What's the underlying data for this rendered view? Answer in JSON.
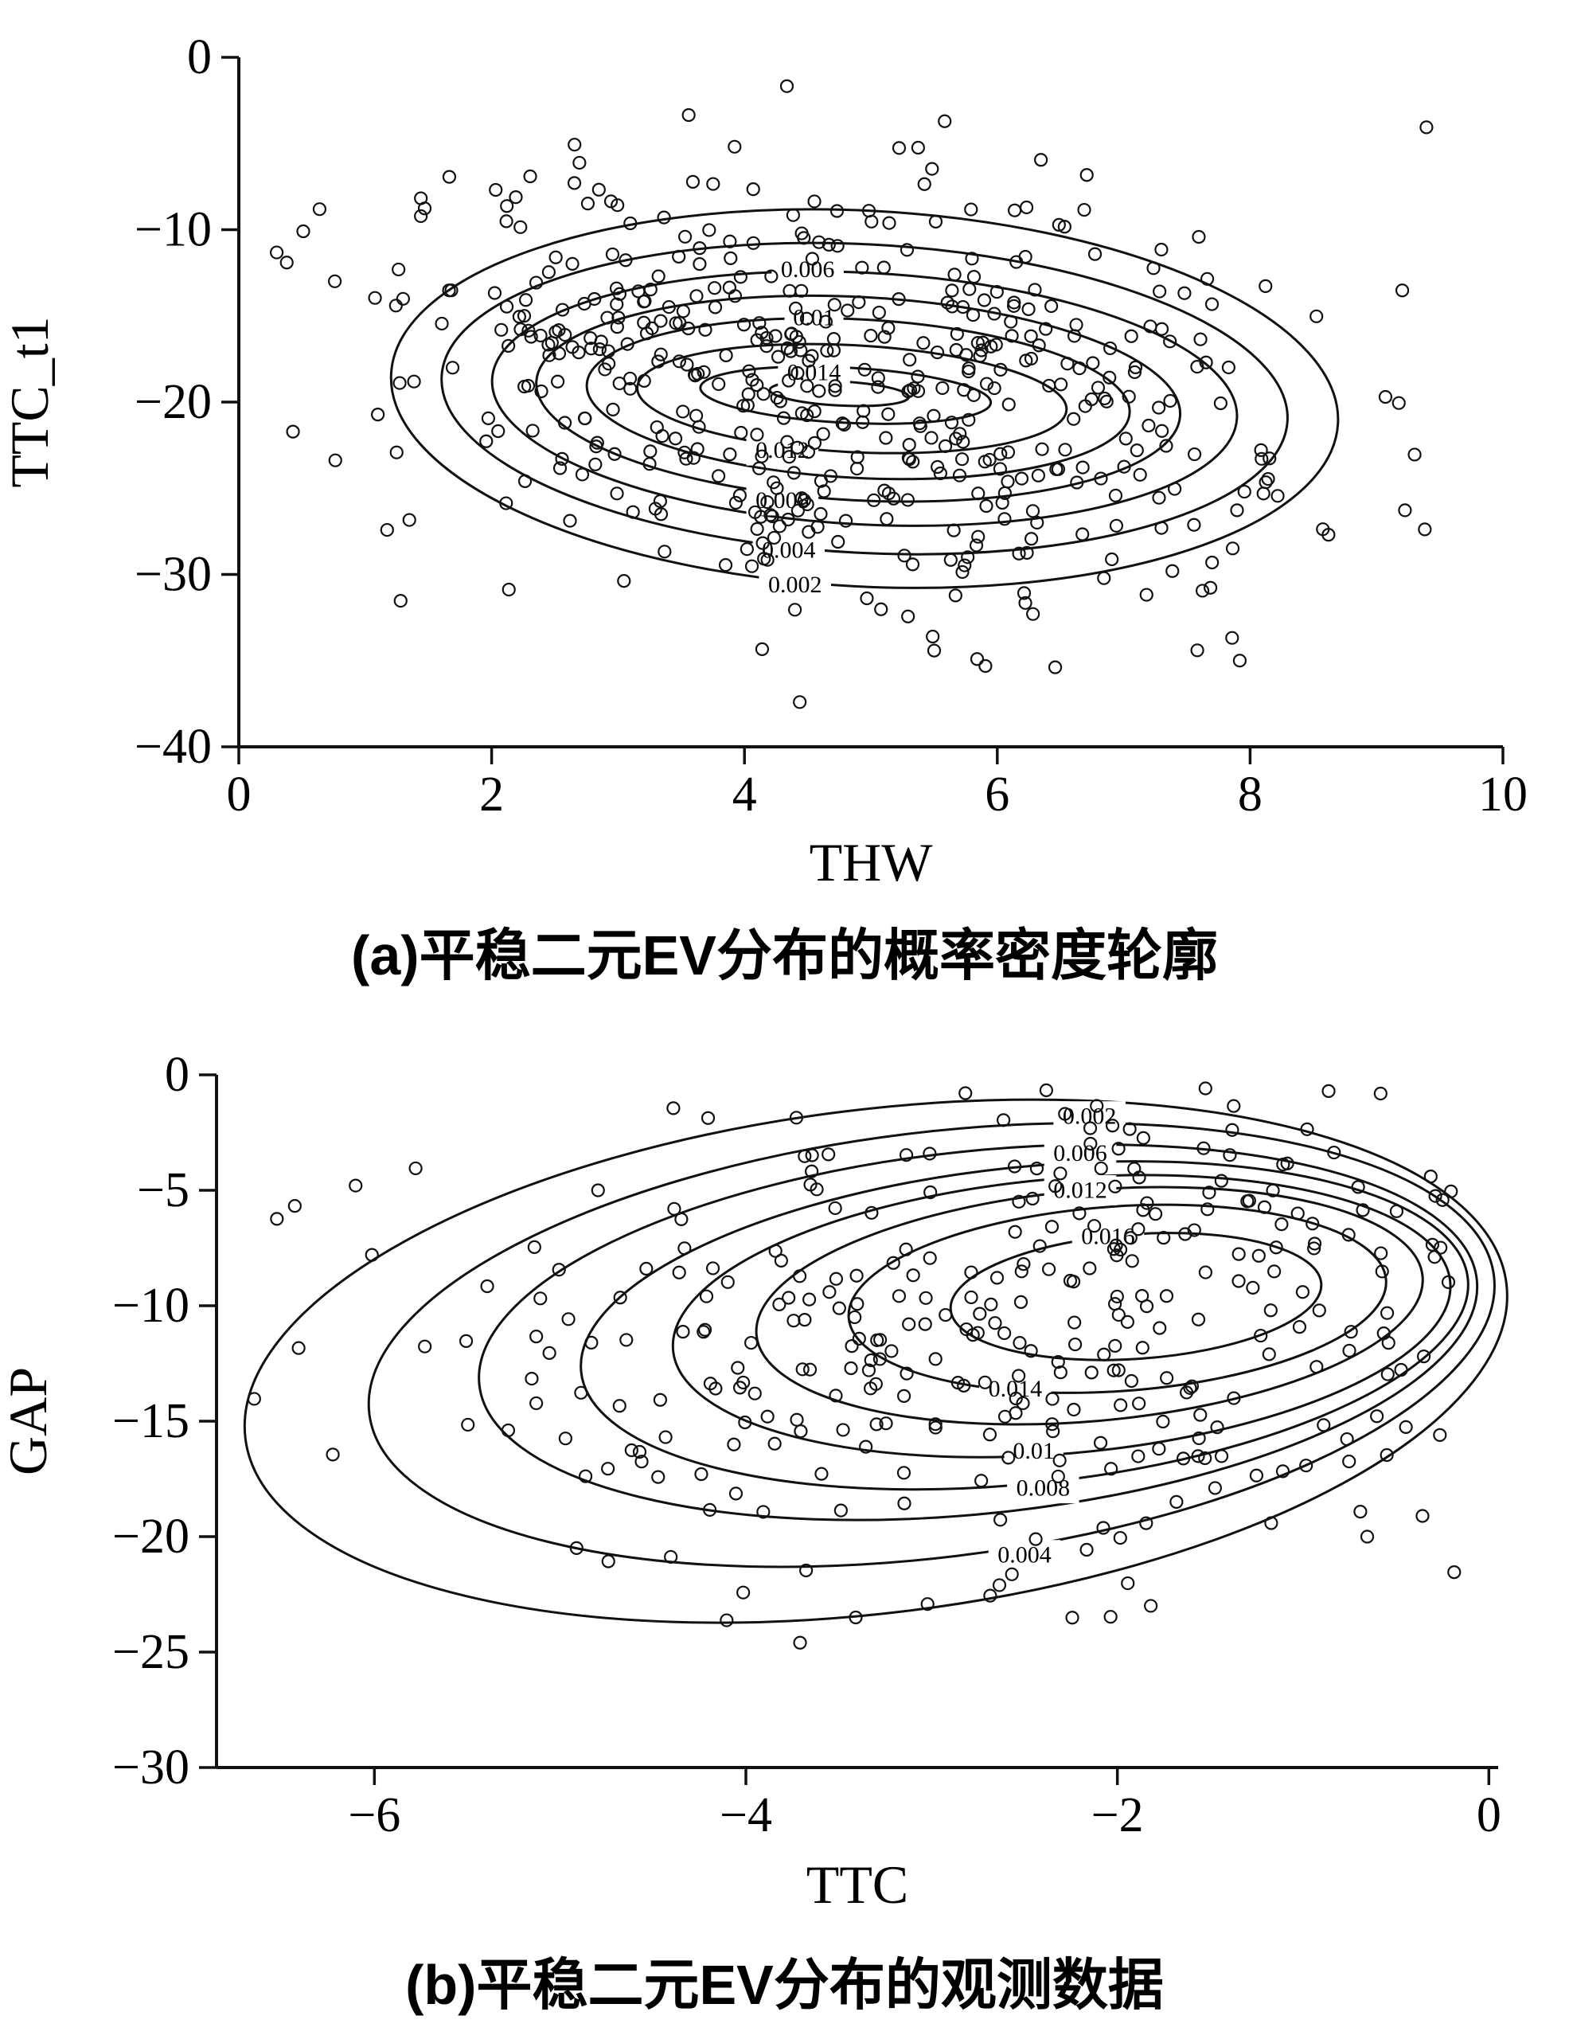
{
  "page": {
    "background": "#ffffff",
    "line_color": "#111111"
  },
  "figures": [
    {
      "caption": "(a)平稳二元EV分布的概率密度轮廓"
    },
    {
      "caption": "(b)平稳二元EV分布的观测数据"
    }
  ],
  "chart_data": [
    {
      "type": "scatter",
      "subtype": "scatter_with_density_contours",
      "title": "",
      "xlabel": "THW",
      "ylabel": "TTC_t1",
      "xlim": [
        0,
        10
      ],
      "ylim": [
        -40,
        0
      ],
      "grid": false,
      "legend": "none",
      "xticks": [
        {
          "v": 0,
          "label": "0"
        },
        {
          "v": 2,
          "label": "2"
        },
        {
          "v": 4,
          "label": "4"
        },
        {
          "v": 6,
          "label": "6"
        },
        {
          "v": 8,
          "label": "8"
        },
        {
          "v": 10,
          "label": "10"
        }
      ],
      "yticks": [
        {
          "v": 0,
          "label": "0"
        },
        {
          "v": -10,
          "label": "−10"
        },
        {
          "v": -20,
          "label": "−20"
        },
        {
          "v": -30,
          "label": "−30"
        },
        {
          "v": -40,
          "label": "−40"
        }
      ],
      "contours": {
        "center": [
          4.95,
          -19.8
        ],
        "rings": [
          {
            "level": 0.002,
            "cx": 4.95,
            "cy": -19.8,
            "rx": 3.75,
            "ry": 10.9,
            "angle": 3
          },
          {
            "level": 0.004,
            "cx": 4.95,
            "cy": -19.8,
            "rx": 3.35,
            "ry": 8.95,
            "angle": 3
          },
          {
            "level": 0.006,
            "cx": 4.95,
            "cy": -19.8,
            "rx": 2.95,
            "ry": 7.3,
            "angle": 3
          },
          {
            "level": 0.008,
            "cx": 4.9,
            "cy": -19.8,
            "rx": 2.55,
            "ry": 5.9,
            "angle": 3
          },
          {
            "level": 0.01,
            "cx": 4.9,
            "cy": -19.8,
            "rx": 2.15,
            "ry": 4.6,
            "angle": 3
          },
          {
            "level": 0.012,
            "cx": 4.85,
            "cy": -19.8,
            "rx": 1.7,
            "ry": 3.1,
            "angle": 3
          },
          {
            "level": 0.014,
            "cx": 4.8,
            "cy": -19.6,
            "rx": 1.15,
            "ry": 1.6,
            "angle": 3
          },
          {
            "level": 0.016,
            "cx": 4.75,
            "cy": -19.5,
            "rx": 0.55,
            "ry": 0.7,
            "angle": 3
          }
        ],
        "labels": [
          {
            "text": "0.006",
            "x": 4.5,
            "y": -12.3
          },
          {
            "text": "0.01",
            "x": 4.55,
            "y": -15.1
          },
          {
            "text": "0.014",
            "x": 4.55,
            "y": -18.3
          },
          {
            "text": "0.012",
            "x": 4.3,
            "y": -22.8
          },
          {
            "text": "0.008",
            "x": 4.3,
            "y": -25.7
          },
          {
            "text": "0.004",
            "x": 4.35,
            "y": -28.6
          },
          {
            "text": "0.002",
            "x": 4.4,
            "y": -30.6
          }
        ]
      },
      "scatter": {
        "n": 520,
        "seed": 1337,
        "cx": 4.8,
        "cy": -19.6,
        "sx": 1.9,
        "sy": 6.4,
        "rho": -0.18,
        "xclip": [
          0.15,
          9.5
        ],
        "yclip": [
          -39.2,
          -0.4
        ]
      }
    },
    {
      "type": "scatter",
      "subtype": "scatter_with_density_contours",
      "title": "",
      "xlabel": "TTC",
      "ylabel": "GAP",
      "xlim": [
        -6.85,
        0.05
      ],
      "ylim": [
        -30,
        0
      ],
      "grid": false,
      "legend": "none",
      "xticks": [
        {
          "v": -6,
          "label": "−6"
        },
        {
          "v": -4,
          "label": "−4"
        },
        {
          "v": -2,
          "label": "−2"
        },
        {
          "v": 0,
          "label": "0"
        }
      ],
      "yticks": [
        {
          "v": 0,
          "label": "0"
        },
        {
          "v": -5,
          "label": "−5"
        },
        {
          "v": -10,
          "label": "−10"
        },
        {
          "v": -15,
          "label": "−15"
        },
        {
          "v": -20,
          "label": "−20"
        },
        {
          "v": -25,
          "label": "−25"
        },
        {
          "v": -30,
          "label": "−30"
        }
      ],
      "contours": {
        "center": [
          -1.95,
          -9.8
        ],
        "rings": [
          {
            "level": 0.002,
            "cx": -3.3,
            "cy": -12.4,
            "rx": 3.42,
            "ry": 10.9,
            "angle": -7
          },
          {
            "level": 0.004,
            "cx": -3.0,
            "cy": -11.7,
            "rx": 3.05,
            "ry": 9.2,
            "angle": -7
          },
          {
            "level": 0.006,
            "cx": -2.75,
            "cy": -11.15,
            "rx": 2.7,
            "ry": 7.85,
            "angle": -6
          },
          {
            "level": 0.008,
            "cx": -2.5,
            "cy": -10.85,
            "rx": 2.4,
            "ry": 6.85,
            "angle": -6
          },
          {
            "level": 0.01,
            "cx": -2.3,
            "cy": -10.45,
            "rx": 2.1,
            "ry": 5.95,
            "angle": -5
          },
          {
            "level": 0.012,
            "cx": -2.15,
            "cy": -10.0,
            "rx": 1.8,
            "ry": 5.0,
            "angle": -5
          },
          {
            "level": 0.014,
            "cx": -2.0,
            "cy": -9.7,
            "rx": 1.45,
            "ry": 4.0,
            "angle": -4
          },
          {
            "level": 0.016,
            "cx": -1.9,
            "cy": -9.6,
            "rx": 1.0,
            "ry": 2.7,
            "angle": -4
          }
        ],
        "labels": [
          {
            "text": "0.002",
            "x": -2.15,
            "y": -1.8
          },
          {
            "text": "0.006",
            "x": -2.2,
            "y": -3.4
          },
          {
            "text": "0.012",
            "x": -2.2,
            "y": -5.0
          },
          {
            "text": "0.016",
            "x": -2.05,
            "y": -7.0
          },
          {
            "text": "0.014",
            "x": -2.55,
            "y": -13.6
          },
          {
            "text": "0.01",
            "x": -2.45,
            "y": -16.3
          },
          {
            "text": "0.008",
            "x": -2.4,
            "y": -17.9
          },
          {
            "text": "0.004",
            "x": -2.5,
            "y": -20.8
          }
        ]
      },
      "scatter": {
        "n": 340,
        "seed": 7331,
        "cx": -2.45,
        "cy": -10.6,
        "sx": 1.75,
        "sy": 5.9,
        "rho": 0.12,
        "xclip": [
          -6.7,
          -0.03
        ],
        "yclip": [
          -29.6,
          -0.5
        ]
      }
    }
  ]
}
